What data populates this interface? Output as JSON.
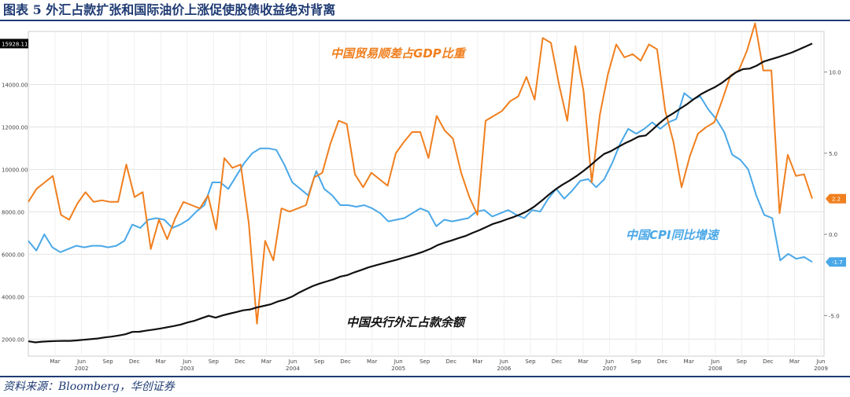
{
  "title": "图表 5 外汇占款扩张和国际油价上涨促使股债收益绝对背离",
  "source": "资料来源：Bloomberg，华创证券",
  "colors": {
    "reserves": "#111111",
    "trade": "#f07f1e",
    "cpi": "#4aa8e8",
    "title": "#1f3b73"
  },
  "chart_data": {
    "type": "line",
    "y_left": {
      "ticks": [
        2000,
        4000,
        6000,
        8000,
        10000,
        12000,
        14000
      ],
      "tick_labels": [
        "2000.00",
        "4000.00",
        "6000.00",
        "8000.00",
        "10000.00",
        "12000.00",
        "14000.00"
      ],
      "range": [
        1200,
        16500
      ]
    },
    "y_right": {
      "ticks": [
        10,
        5,
        0,
        -5
      ],
      "tick_labels": [
        "10.0",
        "5.0",
        "0.0",
        "-5.0"
      ],
      "range": [
        -7.5,
        12.5
      ]
    },
    "x_month_labels": [
      "Mar",
      "Jun",
      "Sep",
      "Dec",
      "Mar",
      "Jun",
      "Sep",
      "Dec",
      "Mar",
      "Jun",
      "Sep",
      "Dec",
      "Mar",
      "Jun",
      "Sep",
      "Dec",
      "Mar",
      "Jun",
      "Sep",
      "Dec",
      "Mar",
      "Jun",
      "Sep",
      "Dec",
      "Mar",
      "Jun",
      "Sep",
      "Dec",
      "Mar",
      "Jun"
    ],
    "x_year_labels": [
      "2002",
      "2003",
      "2004",
      "2005",
      "2006",
      "2007",
      "2008",
      "2009"
    ],
    "grid": true,
    "series": [
      {
        "name": "中国央行外汇占款余额",
        "axis": "left",
        "last_label": "15928.11",
        "values": [
          1900,
          1850,
          1880,
          1900,
          1910,
          1920,
          1920,
          1940,
          1970,
          2000,
          2030,
          2080,
          2120,
          2170,
          2230,
          2340,
          2350,
          2400,
          2450,
          2500,
          2560,
          2620,
          2690,
          2790,
          2870,
          2990,
          3100,
          3010,
          3120,
          3200,
          3280,
          3360,
          3400,
          3500,
          3570,
          3650,
          3780,
          3870,
          4000,
          4190,
          4350,
          4500,
          4620,
          4720,
          4820,
          4950,
          5020,
          5150,
          5260,
          5380,
          5470,
          5560,
          5650,
          5730,
          5830,
          5920,
          6020,
          6130,
          6260,
          6430,
          6550,
          6650,
          6760,
          6860,
          7000,
          7130,
          7280,
          7430,
          7530,
          7650,
          7760,
          7890,
          8050,
          8260,
          8520,
          8800,
          9060,
          9280,
          9470,
          9680,
          9920,
          10180,
          10470,
          10730,
          10860,
          11050,
          11230,
          11380,
          11550,
          11600,
          11880,
          12180,
          12450,
          12650,
          12870,
          13080,
          13330,
          13550,
          13720,
          13880,
          14080,
          14330,
          14570,
          14720,
          14750,
          14890,
          15080,
          15180,
          15280,
          15390,
          15500,
          15640,
          15780,
          15928
        ]
      },
      {
        "name": "中国贸易顺差占GDP比重",
        "axis": "right",
        "last_label": "2.2",
        "values": [
          2.0,
          2.8,
          3.2,
          3.6,
          1.2,
          0.9,
          1.9,
          2.6,
          2.0,
          2.1,
          2.0,
          2.0,
          4.3,
          2.3,
          2.6,
          -0.9,
          0.9,
          -0.3,
          1.0,
          2.0,
          1.8,
          1.6,
          2.4,
          0.3,
          4.7,
          4.1,
          4.3,
          0.7,
          -5.5,
          -0.4,
          -1.6,
          1.6,
          1.4,
          1.6,
          1.8,
          3.5,
          3.8,
          5.6,
          7.0,
          6.8,
          3.7,
          2.9,
          3.8,
          3.4,
          3.0,
          5.0,
          5.7,
          6.3,
          6.3,
          4.7,
          7.3,
          6.4,
          5.9,
          3.8,
          2.3,
          1.2,
          7.0,
          7.3,
          7.6,
          8.2,
          8.5,
          9.7,
          8.3,
          12.1,
          11.8,
          9.2,
          7.0,
          11.6,
          8.8,
          3.2,
          7.4,
          9.9,
          11.7,
          10.9,
          11.1,
          10.7,
          11.7,
          11.4,
          7.6,
          5.7,
          2.9,
          4.8,
          6.2,
          6.6,
          6.9,
          8.3,
          9.8,
          10.1,
          11.3,
          13.0,
          10.1,
          10.1,
          1.3,
          4.9,
          3.6,
          3.7,
          2.2
        ]
      },
      {
        "name": "中国CPI同比增速",
        "axis": "right",
        "last_label": "-1.7",
        "values": [
          -0.4,
          -1.0,
          0.0,
          -0.8,
          -1.1,
          -0.9,
          -0.7,
          -0.8,
          -0.7,
          -0.7,
          -0.8,
          -0.7,
          -0.4,
          0.6,
          0.4,
          0.9,
          1.0,
          0.9,
          0.4,
          0.6,
          0.9,
          1.4,
          1.8,
          3.2,
          3.2,
          2.8,
          3.6,
          4.4,
          5.0,
          5.3,
          5.3,
          5.2,
          4.3,
          3.2,
          2.8,
          2.4,
          3.9,
          2.8,
          2.4,
          1.8,
          1.8,
          1.7,
          1.8,
          1.6,
          1.3,
          0.8,
          0.9,
          1.0,
          1.3,
          1.6,
          1.4,
          0.5,
          0.9,
          0.8,
          0.9,
          1.0,
          1.4,
          1.5,
          1.1,
          1.3,
          1.5,
          1.2,
          1.0,
          1.5,
          1.4,
          2.2,
          2.8,
          2.2,
          2.7,
          3.3,
          3.4,
          2.9,
          3.4,
          4.4,
          5.6,
          6.5,
          6.2,
          6.5,
          6.9,
          6.5,
          6.9,
          7.1,
          8.7,
          8.3,
          8.5,
          7.7,
          7.1,
          6.3,
          4.9,
          4.6,
          4.0,
          2.4,
          1.2,
          1.0,
          -1.6,
          -1.2,
          -1.5,
          -1.4,
          -1.7
        ]
      }
    ],
    "annotations": [
      "中国贸易顺差占GDP比重",
      "中国CPI同比增速",
      "中国央行外汇占款余额"
    ]
  }
}
